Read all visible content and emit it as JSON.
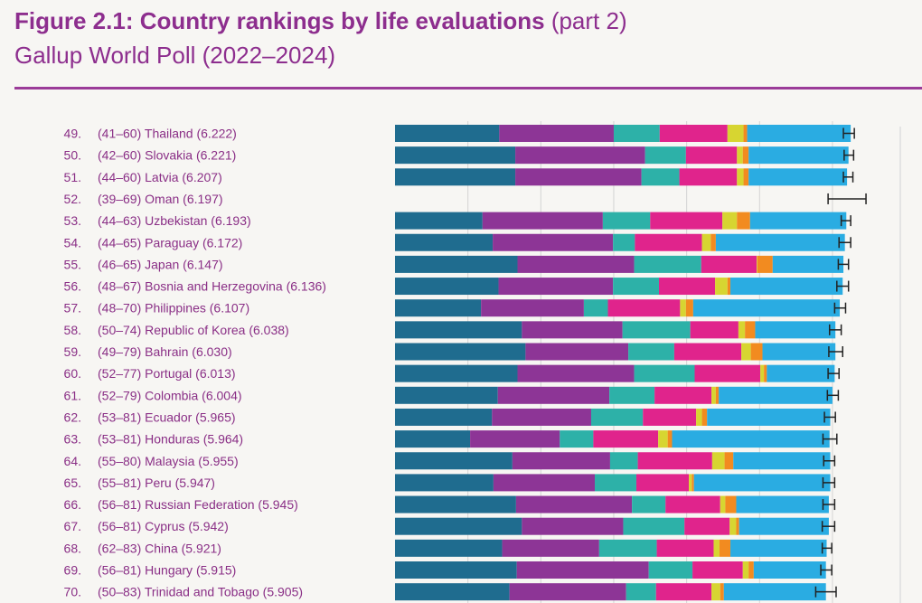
{
  "figure": {
    "title_bold": "Figure 2.1: Country rankings by life evaluations",
    "title_suffix": "(part 2)",
    "subtitle": "Gallup World Poll (2022–2024)"
  },
  "colors": [
    "#1f6c8f",
    "#8d3596",
    "#2db1a8",
    "#e0248c",
    "#d7d531",
    "#f28b20",
    "#2aace2"
  ],
  "chart_data": {
    "type": "bar",
    "stacked": true,
    "orientation": "horizontal",
    "legend": "none",
    "grid": true,
    "categories": [
      "49. (41–60) Thailand (6.222)",
      "50. (42–60) Slovakia (6.221)",
      "51. (44–60) Latvia (6.207)",
      "52. (39–69) Oman (6.197)",
      "53. (44–63) Uzbekistan (6.193)",
      "54. (44–65) Paraguay (6.172)",
      "55. (46–65) Japan (6.147)",
      "56. (48–67) Bosnia and Herzegovina (6.136)",
      "57. (48–70) Philippines (6.107)",
      "58. (50–74) Republic of Korea (6.038)",
      "59. (49–79) Bahrain (6.030)",
      "60. (52–77) Portugal (6.013)",
      "61. (52–79) Colombia (6.004)",
      "62. (53–81) Ecuador (5.965)",
      "63. (53–81) Honduras (5.964)",
      "64. (55–80) Malaysia (5.955)",
      "65. (55–81) Peru (5.947)",
      "66. (56–81) Russian Federation (5.945)",
      "67. (56–81) Cyprus (5.942)",
      "68. (62–83) China (5.921)",
      "69. (56–81) Hungary (5.915)",
      "70. (50–83) Trinidad and Tobago (5.905)"
    ],
    "rows": [
      {
        "rank": "49.",
        "range": "(41–60)",
        "country": "Thailand",
        "score": "(6.222)",
        "total": 6.222,
        "ci": [
          6.15,
          6.3
        ],
        "segments": [
          1.43,
          1.57,
          0.63,
          0.93,
          0.22,
          0.05,
          1.42
        ]
      },
      {
        "rank": "50.",
        "range": "(42–60)",
        "country": "Slovakia",
        "score": "(6.221)",
        "total": 6.221,
        "ci": [
          6.16,
          6.29
        ],
        "segments": [
          1.65,
          1.78,
          0.56,
          0.7,
          0.08,
          0.08,
          1.37
        ]
      },
      {
        "rank": "51.",
        "range": "(44–60)",
        "country": "Latvia",
        "score": "(6.207)",
        "total": 6.207,
        "ci": [
          6.15,
          6.28
        ],
        "segments": [
          1.65,
          1.73,
          0.52,
          0.79,
          0.09,
          0.07,
          1.35
        ]
      },
      {
        "rank": "52.",
        "range": "(39–69)",
        "country": "Oman",
        "score": "(6.197)",
        "total": 6.197,
        "ci": [
          5.94,
          6.46
        ],
        "segments": []
      },
      {
        "rank": "53.",
        "range": "(44–63)",
        "country": "Uzbekistan",
        "score": "(6.193)",
        "total": 6.193,
        "ci": [
          6.12,
          6.25
        ],
        "segments": [
          1.2,
          1.65,
          0.65,
          0.99,
          0.2,
          0.18,
          1.32
        ]
      },
      {
        "rank": "54.",
        "range": "(44–65)",
        "country": "Paraguay",
        "score": "(6.172)",
        "total": 6.172,
        "ci": [
          6.09,
          6.25
        ],
        "segments": [
          1.34,
          1.65,
          0.3,
          0.92,
          0.12,
          0.07,
          1.77
        ]
      },
      {
        "rank": "55.",
        "range": "(46–65)",
        "country": "Japan",
        "score": "(6.147)",
        "total": 6.147,
        "ci": [
          6.08,
          6.22
        ],
        "segments": [
          1.68,
          1.6,
          0.92,
          0.76,
          0.01,
          0.21,
          0.97
        ]
      },
      {
        "rank": "56.",
        "range": "(48–67)",
        "country": "Bosnia and Herzegovina",
        "score": "(6.136)",
        "total": 6.136,
        "ci": [
          6.06,
          6.22
        ],
        "segments": [
          1.42,
          1.57,
          0.63,
          0.77,
          0.17,
          0.04,
          1.54
        ]
      },
      {
        "rank": "57.",
        "range": "(48–70)",
        "country": "Philippines",
        "score": "(6.107)",
        "total": 6.107,
        "ci": [
          6.03,
          6.18
        ],
        "segments": [
          1.18,
          1.41,
          0.33,
          0.99,
          0.08,
          0.1,
          2.01
        ]
      },
      {
        "rank": "58.",
        "range": "(50–74)",
        "country": "Republic of Korea",
        "score": "(6.038)",
        "total": 6.038,
        "ci": [
          5.96,
          6.12
        ],
        "segments": [
          1.74,
          1.38,
          0.93,
          0.66,
          0.09,
          0.14,
          1.1
        ]
      },
      {
        "rank": "59.",
        "range": "(49–79)",
        "country": "Bahrain",
        "score": "(6.030)",
        "total": 6.03,
        "ci": [
          5.95,
          6.14
        ],
        "segments": [
          1.79,
          1.41,
          0.63,
          0.92,
          0.13,
          0.16,
          1.0
        ]
      },
      {
        "rank": "60.",
        "range": "(52–77)",
        "country": "Portugal",
        "score": "(6.013)",
        "total": 6.013,
        "ci": [
          5.94,
          6.09
        ],
        "segments": [
          1.68,
          1.6,
          0.83,
          0.9,
          0.05,
          0.04,
          0.93
        ]
      },
      {
        "rank": "61.",
        "range": "(52–79)",
        "country": "Colombia",
        "score": "(6.004)",
        "total": 6.004,
        "ci": [
          5.93,
          6.08
        ],
        "segments": [
          1.41,
          1.53,
          0.62,
          0.78,
          0.06,
          0.04,
          1.56
        ]
      },
      {
        "rank": "62.",
        "range": "(53–81)",
        "country": "Ecuador",
        "score": "(5.965)",
        "total": 5.965,
        "ci": [
          5.89,
          6.04
        ],
        "segments": [
          1.33,
          1.36,
          0.71,
          0.73,
          0.08,
          0.07,
          1.69
        ]
      },
      {
        "rank": "63.",
        "range": "(53–81)",
        "country": "Honduras",
        "score": "(5.964)",
        "total": 5.964,
        "ci": [
          5.87,
          6.06
        ],
        "segments": [
          1.03,
          1.23,
          0.46,
          0.89,
          0.13,
          0.06,
          2.16
        ]
      },
      {
        "rank": "64.",
        "range": "(55–80)",
        "country": "Malaysia",
        "score": "(5.955)",
        "total": 5.955,
        "ci": [
          5.88,
          6.03
        ],
        "segments": [
          1.61,
          1.34,
          0.38,
          1.02,
          0.17,
          0.12,
          1.33
        ]
      },
      {
        "rank": "65.",
        "range": "(55–81)",
        "country": "Peru",
        "score": "(5.947)",
        "total": 5.947,
        "ci": [
          5.87,
          6.03
        ],
        "segments": [
          1.35,
          1.39,
          0.57,
          0.72,
          0.04,
          0.03,
          1.87
        ]
      },
      {
        "rank": "66.",
        "range": "(56–81)",
        "country": "Russian Federation",
        "score": "(5.945)",
        "total": 5.945,
        "ci": [
          5.87,
          6.03
        ],
        "segments": [
          1.66,
          1.59,
          0.46,
          0.75,
          0.07,
          0.15,
          1.27
        ]
      },
      {
        "rank": "67.",
        "range": "(56–81)",
        "country": "Cyprus",
        "score": "(5.942)",
        "total": 5.942,
        "ci": [
          5.86,
          6.03
        ],
        "segments": [
          1.74,
          1.39,
          0.84,
          0.62,
          0.09,
          0.04,
          1.23
        ]
      },
      {
        "rank": "68.",
        "range": "(62–83)",
        "country": "China",
        "score": "(5.921)",
        "total": 5.921,
        "ci": [
          5.86,
          5.99
        ],
        "segments": [
          1.47,
          1.33,
          0.79,
          0.78,
          0.08,
          0.15,
          1.32
        ]
      },
      {
        "rank": "69.",
        "range": "(56–81)",
        "country": "Hungary",
        "score": "(5.915)",
        "total": 5.915,
        "ci": [
          5.84,
          5.99
        ],
        "segments": [
          1.67,
          1.81,
          0.6,
          0.69,
          0.08,
          0.07,
          0.99
        ]
      },
      {
        "rank": "70.",
        "range": "(50–83)",
        "country": "Trinidad and Tobago",
        "score": "(5.905)",
        "total": 5.905,
        "ci": [
          5.77,
          6.05
        ],
        "segments": [
          1.57,
          1.6,
          0.41,
          0.76,
          0.12,
          0.05,
          1.4
        ]
      }
    ],
    "xlim": [
      0,
      6.98
    ],
    "gridlines": [
      1,
      2,
      3,
      4,
      5,
      6
    ]
  }
}
